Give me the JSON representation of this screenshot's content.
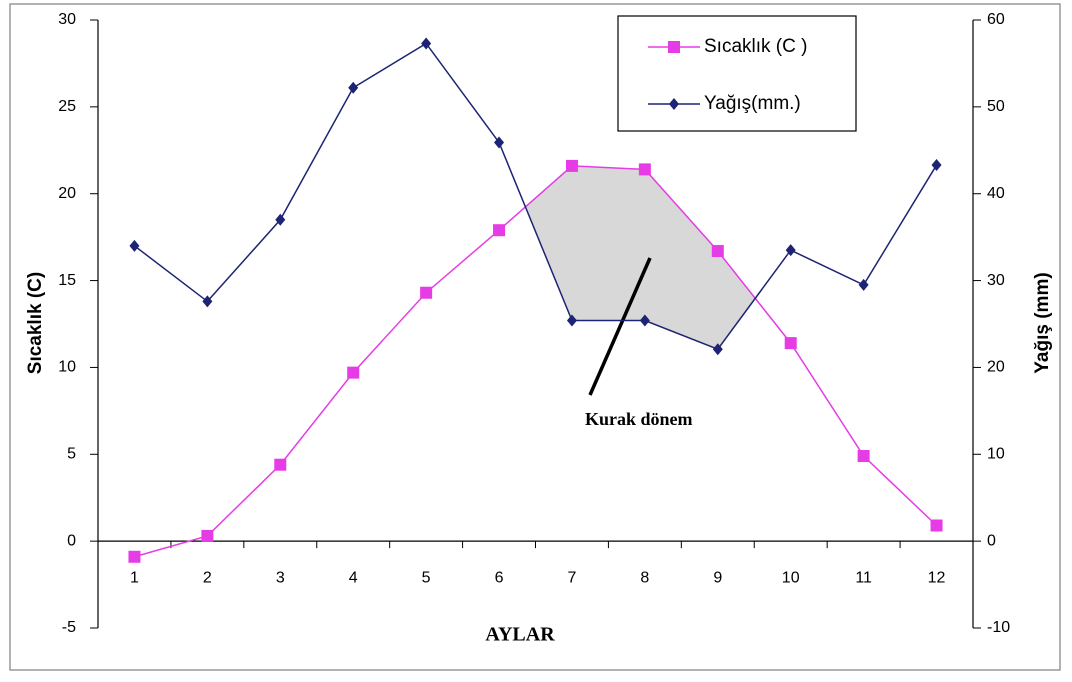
{
  "chart_data": {
    "type": "line",
    "categories": [
      "1",
      "2",
      "3",
      "4",
      "5",
      "6",
      "7",
      "8",
      "9",
      "10",
      "11",
      "12"
    ],
    "series": [
      {
        "name": "Sıcaklık (C )",
        "color": "#e63ce6",
        "marker": "square",
        "values": [
          -0.9,
          0.3,
          4.4,
          9.7,
          14.3,
          17.9,
          21.6,
          21.4,
          16.7,
          11.4,
          4.9,
          0.9
        ]
      },
      {
        "name": "Yağış(mm.)",
        "color": "#1c2473",
        "marker": "diamond",
        "axis": "y2",
        "values": [
          34.0,
          27.6,
          37.0,
          52.2,
          57.3,
          45.9,
          25.4,
          25.4,
          22.1,
          33.5,
          29.5,
          43.3
        ]
      }
    ],
    "xlabel": "AYLAR",
    "ylabel": "Sıcaklık (C)",
    "y2label": "Yağış (mm)",
    "annotation": "Kurak dönem",
    "ylim": [
      -5,
      30
    ],
    "yticks": [
      -5,
      0,
      5,
      10,
      15,
      20,
      25,
      30
    ],
    "y2lim": [
      -10,
      60
    ],
    "y2ticks": [
      -10,
      0,
      10,
      20,
      30,
      40,
      50,
      60
    ],
    "legend": "top-right",
    "fill_between": "#d8d8d8"
  }
}
